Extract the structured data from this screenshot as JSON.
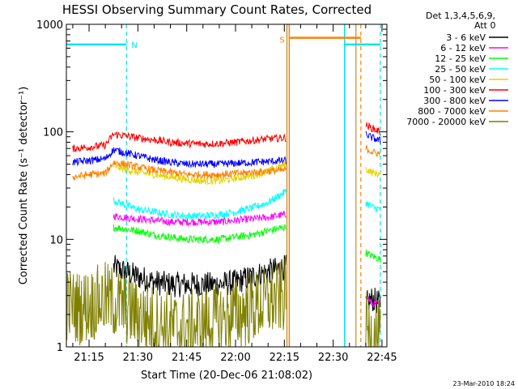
{
  "chart_data": {
    "type": "line",
    "title": "HESSI Observing Summary Count Rates, Corrected",
    "xlabel": "Start Time (20-Dec-06 21:08:02)",
    "ylabel": "Corrected Count Rate (s⁻¹ detector⁻¹)",
    "y_scale": "log",
    "ylim": [
      1,
      1000
    ],
    "y_ticks": [
      "1",
      "10",
      "100",
      "1000"
    ],
    "x_ticks": [
      "21:15",
      "21:30",
      "21:45",
      "22:00",
      "22:15",
      "22:30",
      "22:45"
    ],
    "xlim_minutes": [
      8.03,
      106.5
    ],
    "legend_header": [
      "Det 1,3,4,5,6,9,",
      "Att 0"
    ],
    "legend_position": "right",
    "timestamp": "23-Mar-2010 18:24",
    "band_labels": {
      "night": "N",
      "saa": "S"
    },
    "colors": {
      "night": "#00e5ee",
      "saa": "#ff8000"
    },
    "annotations": {
      "night_bar_1": {
        "x_minutes": [
          8.03,
          26.5
        ],
        "y": 650
      },
      "night_bar_2": {
        "x_minutes": [
          93.5,
          104.5
        ],
        "y": 650
      },
      "saa_bar": {
        "x_minutes": [
          76.5,
          98.5
        ],
        "y": 750
      },
      "night_start_line": 93.5,
      "night_end_lines": [
        26.5,
        104.5
      ],
      "saa_start_line": 76.5,
      "saa_end_line": 98.5,
      "gap_lines": [
        75.8,
        97.0
      ]
    },
    "series": [
      {
        "name": "3 - 6 keV",
        "color": "#000000",
        "segments": [
          {
            "x": [
              22.5,
              26,
              30,
              35,
              40,
              45,
              50,
              55,
              60,
              65,
              70,
              75.5
            ],
            "y": [
              5.5,
              5,
              4.5,
              4,
              3.8,
              3.8,
              3.8,
              3.8,
              4,
              4.5,
              5,
              5.5
            ]
          },
          {
            "x": [
              100,
              102,
              104.5
            ],
            "y": [
              2.5,
              2.8,
              2.5
            ]
          }
        ]
      },
      {
        "name": "6 - 12 keV",
        "color": "#ff00ff",
        "segments": [
          {
            "x": [
              22.5,
              26,
              30,
              35,
              40,
              45,
              50,
              55,
              60,
              65,
              70,
              75.5
            ],
            "y": [
              16.5,
              16,
              15.5,
              15,
              14.5,
              14.5,
              14.5,
              14.5,
              15,
              15.5,
              16,
              17
            ]
          },
          {
            "x": [
              100,
              102,
              104.5
            ],
            "y": [
              3,
              2.5,
              2.5
            ]
          }
        ]
      },
      {
        "name": "12 - 25 keV",
        "color": "#00ff00",
        "segments": [
          {
            "x": [
              22.5,
              26,
              30,
              35,
              40,
              45,
              50,
              55,
              60,
              65,
              70,
              75.5
            ],
            "y": [
              13,
              12.5,
              12,
              11,
              10.5,
              10,
              10,
              10,
              10.5,
              11,
              12,
              13
            ]
          },
          {
            "x": [
              100,
              102,
              104.5
            ],
            "y": [
              7.5,
              7,
              6.5
            ]
          }
        ]
      },
      {
        "name": "25 - 50 keV",
        "color": "#00ffff",
        "segments": [
          {
            "x": [
              22.5,
              26,
              30,
              35,
              40,
              45,
              50,
              55,
              60,
              65,
              70,
              75.5
            ],
            "y": [
              23,
              21,
              19,
              18,
              17,
              16.5,
              16.5,
              17,
              18,
              19.5,
              22,
              28
            ]
          },
          {
            "x": [
              100,
              102,
              104.5
            ],
            "y": [
              22,
              20,
              19
            ]
          }
        ]
      },
      {
        "name": "50 - 100 keV",
        "color": "#e6d200",
        "segments": [
          {
            "x": [
              22.5,
              26,
              30,
              35,
              40,
              45,
              50,
              55,
              60,
              65,
              70,
              75.5
            ],
            "y": [
              48,
              45,
              42,
              40,
              38,
              36,
              35,
              35,
              37,
              39,
              43,
              50
            ]
          },
          {
            "x": [
              100,
              102,
              104.5
            ],
            "y": [
              45,
              42,
              40
            ]
          }
        ]
      },
      {
        "name": "100 - 300 keV",
        "color": "#ff0000",
        "segments": [
          {
            "x": [
              10,
              15,
              20,
              22.5,
              26,
              30,
              35,
              40,
              45,
              50,
              55,
              60,
              65,
              70,
              75.5
            ],
            "y": [
              70,
              72,
              75,
              95,
              92,
              88,
              84,
              80,
              78,
              77,
              78,
              80,
              83,
              86,
              88
            ]
          },
          {
            "x": [
              100,
              102,
              104.5
            ],
            "y": [
              115,
              108,
              100
            ]
          }
        ]
      },
      {
        "name": "300 - 800 keV",
        "color": "#0000ff",
        "segments": [
          {
            "x": [
              10,
              15,
              20,
              22.5,
              26,
              30,
              35,
              40,
              45,
              50,
              55,
              60,
              65,
              70,
              75.5
            ],
            "y": [
              52,
              54,
              56,
              68,
              64,
              60,
              55,
              52,
              50,
              50,
              50,
              51,
              52,
              53,
              54
            ]
          },
          {
            "x": [
              100,
              102,
              104.5
            ],
            "y": [
              95,
              88,
              82
            ]
          }
        ]
      },
      {
        "name": "800 - 7000 keV",
        "color": "#ff8000",
        "segments": [
          {
            "x": [
              10,
              15,
              20,
              22.5,
              26,
              30,
              35,
              40,
              45,
              50,
              55,
              60,
              65,
              70,
              75.5
            ],
            "y": [
              38,
              40,
              41,
              52,
              50,
              47,
              44,
              42,
              40,
              40,
              40,
              41,
              42,
              43,
              44
            ]
          },
          {
            "x": [
              100,
              102,
              104.5
            ],
            "y": [
              70,
              65,
              62
            ]
          }
        ]
      },
      {
        "name": "7000 - 20000 keV",
        "color": "#808000",
        "segments": [
          {
            "x": [
              8.03,
              12,
              16,
              20,
              22.5,
              26,
              30,
              35,
              40,
              45,
              50,
              55,
              60,
              65,
              70,
              75.5
            ],
            "y": [
              2.5,
              2.3,
              2.5,
              2.8,
              2.6,
              2.3,
              2.0,
              1.7,
              1.5,
              1.5,
              1.6,
              1.8,
              2.0,
              2.3,
              2.6,
              3.0
            ]
          },
          {
            "x": [
              100,
              102,
              104.5
            ],
            "y": [
              1.5,
              1.3,
              1.2
            ]
          }
        ]
      }
    ]
  }
}
